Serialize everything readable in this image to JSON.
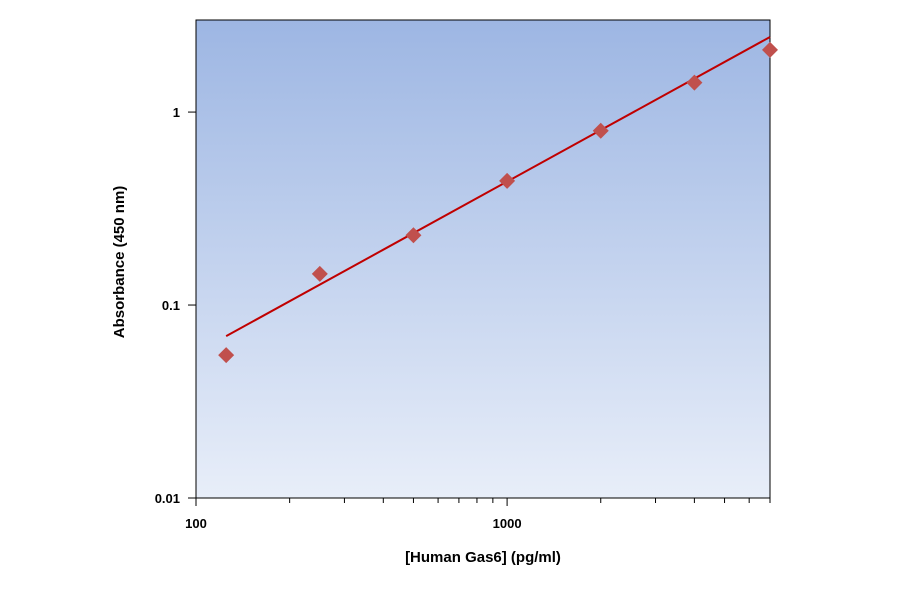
{
  "chart_data": {
    "type": "scatter",
    "xlabel": "[Human Gas6] (pg/ml)",
    "ylabel": "Absorbance (450 nm)",
    "xscale": "log",
    "yscale": "log",
    "xlim": [
      100,
      7000
    ],
    "ylim": [
      0.01,
      3
    ],
    "x_ticks": [
      {
        "value": 100,
        "label": "100"
      },
      {
        "value": 1000,
        "label": "1000"
      }
    ],
    "y_ticks": [
      {
        "value": 0.01,
        "label": "0.01"
      },
      {
        "value": 0.1,
        "label": "0.1"
      },
      {
        "value": 1,
        "label": "1"
      }
    ],
    "points": [
      {
        "x": 125,
        "y": 0.055
      },
      {
        "x": 250,
        "y": 0.145
      },
      {
        "x": 500,
        "y": 0.23
      },
      {
        "x": 1000,
        "y": 0.44
      },
      {
        "x": 2000,
        "y": 0.8
      },
      {
        "x": 4000,
        "y": 1.42
      },
      {
        "x": 8000,
        "y": 2.1
      }
    ],
    "fit_line": {
      "x": [
        125,
        7000
      ],
      "y": [
        0.069,
        2.45
      ]
    },
    "grid": false,
    "colors": {
      "plot_bg_top": "#9db6e3",
      "plot_bg_bottom": "#e8eef9",
      "marker": "#c0504d",
      "fit_line": "#c00000"
    }
  }
}
